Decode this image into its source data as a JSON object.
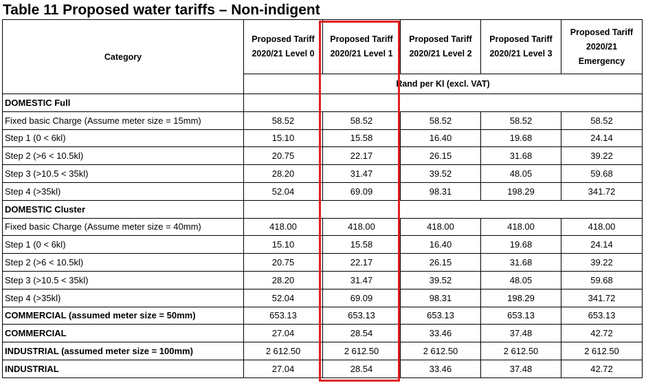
{
  "title": "Table 11 Proposed water tariffs – Non-indigent",
  "header": {
    "category": "Category",
    "columns": [
      "Proposed Tariff 2020/21 Level 0",
      "Proposed Tariff 2020/21 Level 1",
      "Proposed Tariff 2020/21 Level 2",
      "Proposed Tariff 2020/21 Level 3",
      "Proposed Tariff 2020/21 Emergency"
    ],
    "unit": "Rand per Kl (excl. VAT)"
  },
  "rows": [
    {
      "label": "DOMESTIC Full",
      "type": "section",
      "values": []
    },
    {
      "label": "Fixed basic Charge (Assume meter size = 15mm)",
      "type": "data",
      "values": [
        "58.52",
        "58.52",
        "58.52",
        "58.52",
        "58.52"
      ]
    },
    {
      "label": "Step 1 (0 < 6kl)",
      "type": "data",
      "values": [
        "15.10",
        "15.58",
        "16.40",
        "19.68",
        "24.14"
      ]
    },
    {
      "label": "Step 2 (>6 < 10.5kl)",
      "type": "data",
      "values": [
        "20.75",
        "22.17",
        "26.15",
        "31.68",
        "39.22"
      ]
    },
    {
      "label": "Step 3 (>10.5 < 35kl)",
      "type": "data",
      "values": [
        "28.20",
        "31.47",
        "39.52",
        "48.05",
        "59.68"
      ]
    },
    {
      "label": "Step 4 (>35kl)",
      "type": "data",
      "values": [
        "52.04",
        "69.09",
        "98.31",
        "198.29",
        "341.72"
      ]
    },
    {
      "label": "DOMESTIC Cluster",
      "type": "section",
      "values": []
    },
    {
      "label": "Fixed basic Charge (Assume meter size = 40mm)",
      "type": "data",
      "values": [
        "418.00",
        "418.00",
        "418.00",
        "418.00",
        "418.00"
      ]
    },
    {
      "label": "Step 1 (0 < 6kl)",
      "type": "data",
      "values": [
        "15.10",
        "15.58",
        "16.40",
        "19.68",
        "24.14"
      ]
    },
    {
      "label": "Step 2 (>6 < 10.5kl)",
      "type": "data",
      "values": [
        "20.75",
        "22.17",
        "26.15",
        "31.68",
        "39.22"
      ]
    },
    {
      "label": "Step 3 (>10.5 < 35kl)",
      "type": "data",
      "values": [
        "28.20",
        "31.47",
        "39.52",
        "48.05",
        "59.68"
      ]
    },
    {
      "label": "Step 4 (>35kl)",
      "type": "data",
      "values": [
        "52.04",
        "69.09",
        "98.31",
        "198.29",
        "341.72"
      ]
    },
    {
      "label": "COMMERCIAL (assumed meter size = 50mm)",
      "type": "bold",
      "values": [
        "653.13",
        "653.13",
        "653.13",
        "653.13",
        "653.13"
      ]
    },
    {
      "label": "COMMERCIAL",
      "type": "bold",
      "values": [
        "27.04",
        "28.54",
        "33.46",
        "37.48",
        "42.72"
      ]
    },
    {
      "label": "INDUSTRIAL (assumed meter size = 100mm)",
      "type": "bold",
      "values": [
        "2 612.50",
        "2 612.50",
        "2 612.50",
        "2 612.50",
        "2 612.50"
      ]
    },
    {
      "label": "INDUSTRIAL",
      "type": "bold",
      "values": [
        "27.04",
        "28.54",
        "33.46",
        "37.48",
        "42.72"
      ]
    }
  ],
  "highlight": {
    "color": "#e02020",
    "column": "Proposed Tariff 2020/21 Level 1"
  }
}
